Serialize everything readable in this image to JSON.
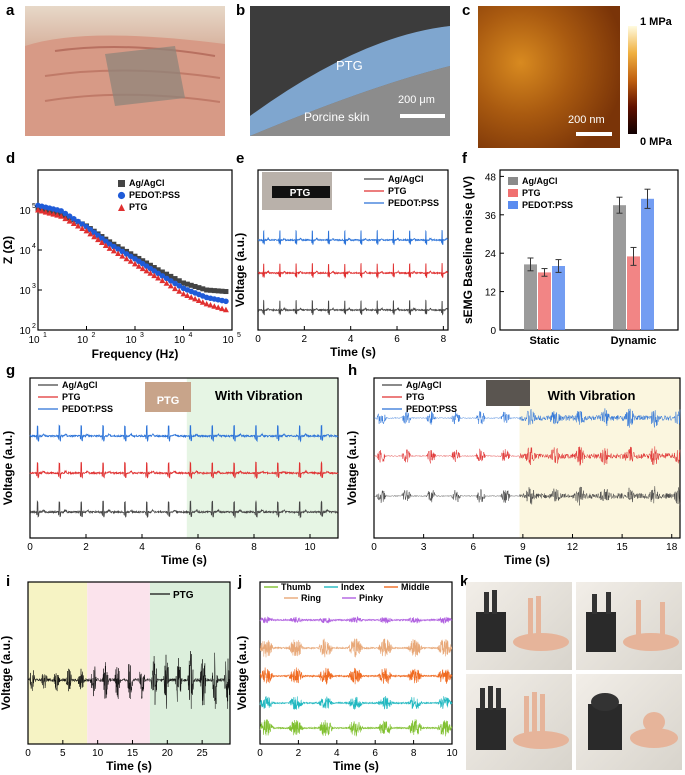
{
  "panels": {
    "a": {
      "label": "a"
    },
    "b": {
      "label": "b",
      "ptg": "PTG",
      "skin": "Porcine skin",
      "scale": "200 μm"
    },
    "c": {
      "label": "c",
      "top": "1 MPa",
      "bottom": "0 MPa",
      "scale": "200 nm"
    },
    "d": {
      "label": "d"
    },
    "e": {
      "label": "e",
      "inset": "PTG"
    },
    "f": {
      "label": "f"
    },
    "g": {
      "label": "g",
      "vibration": "With Vibration",
      "inset": "PTG"
    },
    "h": {
      "label": "h",
      "vibration": "With Vibration"
    },
    "i": {
      "label": "i"
    },
    "j": {
      "label": "j"
    },
    "k": {
      "label": "k"
    }
  },
  "chart_data": [
    {
      "id": "d",
      "type": "scatter",
      "xlabel": "Frequency (Hz)",
      "ylabel": "Z (Ω)",
      "xscale": "log",
      "yscale": "log",
      "xlim": [
        10,
        100000
      ],
      "ylim": [
        100,
        1000000
      ],
      "xticks": [
        "10",
        "10",
        "10",
        "10",
        "10"
      ],
      "xtick_exp": [
        "1",
        "2",
        "3",
        "4",
        "5"
      ],
      "yticks": [
        "10",
        "10",
        "10",
        "10"
      ],
      "ytick_exp": [
        "2",
        "3",
        "4",
        "5"
      ],
      "legend": [
        "Ag/AgCl",
        "PEDOT:PSS",
        "PTG"
      ],
      "series": [
        {
          "name": "Ag/AgCl",
          "color": "#444444",
          "marker": "square",
          "points": [
            [
              10,
              110000
            ],
            [
              30,
              80000
            ],
            [
              100,
              40000
            ],
            [
              300,
              16000
            ],
            [
              1000,
              7000
            ],
            [
              3000,
              3200
            ],
            [
              10000,
              1500
            ],
            [
              30000,
              1000
            ],
            [
              90000,
              900
            ]
          ]
        },
        {
          "name": "PEDOT:PSS",
          "color": "#1f5bd8",
          "marker": "circle",
          "points": [
            [
              10,
              130000
            ],
            [
              30,
              95000
            ],
            [
              100,
              38000
            ],
            [
              300,
              14000
            ],
            [
              1000,
              6000
            ],
            [
              3000,
              2600
            ],
            [
              10000,
              1100
            ],
            [
              30000,
              650
            ],
            [
              90000,
              500
            ]
          ]
        },
        {
          "name": "PTG",
          "color": "#e03030",
          "marker": "triangle",
          "points": [
            [
              10,
              100000
            ],
            [
              30,
              70000
            ],
            [
              100,
              30000
            ],
            [
              300,
              11000
            ],
            [
              1000,
              4500
            ],
            [
              3000,
              2000
            ],
            [
              10000,
              800
            ],
            [
              30000,
              450
            ],
            [
              90000,
              300
            ]
          ]
        }
      ]
    },
    {
      "id": "e",
      "type": "line",
      "xlabel": "Time (s)",
      "ylabel": "Voltage (a.u.)",
      "xlim": [
        0,
        8.2
      ],
      "xticks": [
        "0",
        "2",
        "4",
        "6",
        "8"
      ],
      "legend": [
        "Ag/AgCl",
        "PTG",
        "PEDOT:PSS"
      ],
      "series": [
        {
          "name": "PEDOT:PSS",
          "color": "#2a72d8"
        },
        {
          "name": "PTG",
          "color": "#e03030"
        },
        {
          "name": "Ag/AgCl",
          "color": "#444444"
        }
      ],
      "beat_period_s": 0.7
    },
    {
      "id": "f",
      "type": "bar",
      "ylabel": "sEMG Baseline noise (μV)",
      "categories": [
        "Static",
        "Dynamic"
      ],
      "ylim": [
        0,
        50
      ],
      "yticks": [
        "0",
        "12",
        "24",
        "36",
        "48"
      ],
      "legend": [
        "Ag/AgCl",
        "PTG",
        "PEDOT:PSS"
      ],
      "series": [
        {
          "name": "Ag/AgCl",
          "color": "#8a8a8a",
          "values": [
            20.5,
            39
          ],
          "errors": [
            2,
            2.5
          ]
        },
        {
          "name": "PTG",
          "color": "#f07070",
          "values": [
            18,
            23
          ],
          "errors": [
            1.2,
            2.8
          ]
        },
        {
          "name": "PEDOT:PSS",
          "color": "#5a8cf0",
          "values": [
            20,
            41
          ],
          "errors": [
            2,
            3
          ]
        }
      ]
    },
    {
      "id": "g",
      "type": "line",
      "xlabel": "Time (s)",
      "ylabel": "Voltage (a.u.)",
      "xlim": [
        0,
        11
      ],
      "xticks": [
        "0",
        "2",
        "4",
        "6",
        "8",
        "10"
      ],
      "vibration_start_s": 5.6,
      "legend": [
        "Ag/AgCl",
        "PTG",
        "PEDOT:PSS"
      ],
      "series": [
        {
          "name": "PEDOT:PSS",
          "color": "#2a72d8"
        },
        {
          "name": "PTG",
          "color": "#e03030"
        },
        {
          "name": "Ag/AgCl",
          "color": "#444444"
        }
      ],
      "beat_period_s": 0.78
    },
    {
      "id": "h",
      "type": "line",
      "xlabel": "Time (s)",
      "ylabel": "Voltage (a.u.)",
      "xlim": [
        0,
        18.5
      ],
      "xticks": [
        "0",
        "3",
        "6",
        "9",
        "12",
        "15",
        "18"
      ],
      "vibration_start_s": 8.8,
      "legend": [
        "Ag/AgCl",
        "PTG",
        "PEDOT:PSS"
      ],
      "series": [
        {
          "name": "PEDOT:PSS",
          "color": "#2a72d8"
        },
        {
          "name": "PTG",
          "color": "#e03030"
        },
        {
          "name": "Ag/AgCl",
          "color": "#444444"
        }
      ],
      "burst_period_s": 1.5
    },
    {
      "id": "i",
      "type": "line",
      "xlabel": "Time (s)",
      "ylabel": "Voltage (a.u.)",
      "xlim": [
        0,
        29
      ],
      "xticks": [
        "0",
        "5",
        "10",
        "15",
        "20",
        "25"
      ],
      "legend": [
        "PTG"
      ],
      "regions": [
        {
          "from": 0,
          "to": 8.5,
          "color": "#f6f3c4"
        },
        {
          "from": 8.5,
          "to": 17.5,
          "color": "#fbe3ec"
        },
        {
          "from": 17.5,
          "to": 29,
          "color": "#dcefdc"
        }
      ],
      "series": [
        {
          "name": "PTG",
          "color": "#111111"
        }
      ]
    },
    {
      "id": "j",
      "type": "line",
      "xlabel": "Time (s)",
      "ylabel": "Voltage (a.u.)",
      "xlim": [
        0,
        10
      ],
      "xticks": [
        "0",
        "2",
        "4",
        "6",
        "8",
        "10"
      ],
      "legend": [
        "Thumb",
        "Index",
        "Middle",
        "Ring",
        "Pinky"
      ],
      "series": [
        {
          "name": "Pinky",
          "color": "#b060e0"
        },
        {
          "name": "Ring",
          "color": "#e8a878"
        },
        {
          "name": "Middle",
          "color": "#f06a20"
        },
        {
          "name": "Index",
          "color": "#20b8c0"
        },
        {
          "name": "Thumb",
          "color": "#80c030"
        }
      ]
    }
  ]
}
